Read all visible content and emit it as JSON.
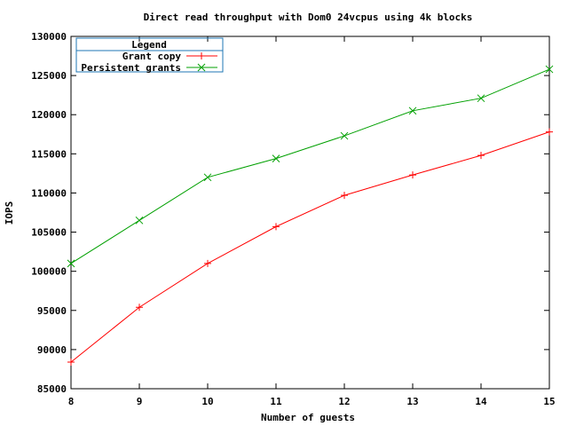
{
  "chart_data": {
    "type": "line",
    "title": "Direct read throughput with Dom0 24vcpus using 4k blocks",
    "xlabel": "Number of guests",
    "ylabel": "IOPS",
    "x": [
      8,
      9,
      10,
      11,
      12,
      13,
      14,
      15
    ],
    "xlim": [
      8,
      15
    ],
    "ylim": [
      85000,
      130000
    ],
    "x_ticks": [
      "8",
      "9",
      "10",
      "11",
      "12",
      "13",
      "14",
      "15"
    ],
    "y_ticks": [
      "85000",
      "90000",
      "95000",
      "100000",
      "105000",
      "110000",
      "115000",
      "120000",
      "125000",
      "130000"
    ],
    "grid": false,
    "legend": {
      "title": "Legend",
      "placement": "top-left"
    },
    "series": [
      {
        "name": "Grant copy",
        "color": "#ff0000",
        "marker": "plus",
        "values": [
          88400,
          95400,
          101000,
          105700,
          109700,
          112300,
          114800,
          117800
        ]
      },
      {
        "name": "Persistent grants",
        "color": "#00a000",
        "marker": "x",
        "values": [
          101000,
          106500,
          112000,
          114400,
          117300,
          120500,
          122100,
          125800
        ]
      }
    ]
  }
}
